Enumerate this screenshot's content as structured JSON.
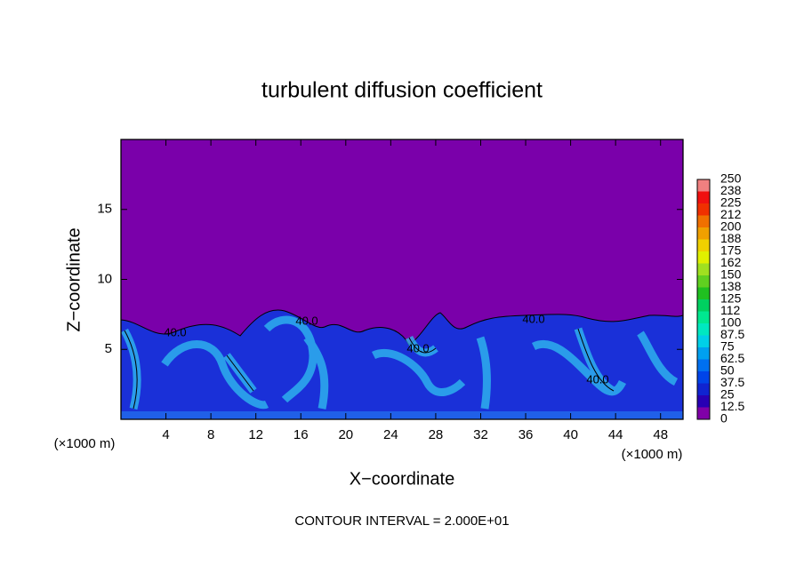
{
  "chart_data": {
    "type": "contour",
    "title": "turbulent diffusion coefficient",
    "x_label": "X−coordinate",
    "y_label": "Z−coordinate",
    "x_unit": "(×1000 m)",
    "xlim": [
      0,
      50
    ],
    "ylim": [
      0,
      20
    ],
    "xticks": [
      4,
      8,
      12,
      16,
      20,
      24,
      28,
      32,
      36,
      40,
      44,
      48
    ],
    "yticks": [
      5,
      10,
      15
    ],
    "levels": [
      0,
      12.5,
      25,
      37.5,
      50,
      62.5,
      75,
      87.5,
      100,
      112,
      125,
      138,
      150,
      162,
      175,
      188,
      200,
      212,
      225,
      238,
      250
    ],
    "colors": [
      "#8000a8",
      "#2800b4",
      "#1024d0",
      "#0044e8",
      "#0070f0",
      "#00a0f0",
      "#00d0e8",
      "#00e8c0",
      "#00e890",
      "#00d060",
      "#20c020",
      "#60d020",
      "#a0e020",
      "#e0f000",
      "#f0d000",
      "#f0a000",
      "#f07000",
      "#f03000",
      "#f01010",
      "#f08080"
    ],
    "contour_label": "40.0",
    "footer": "CONTOUR INTERVAL = 2.000E+01"
  }
}
